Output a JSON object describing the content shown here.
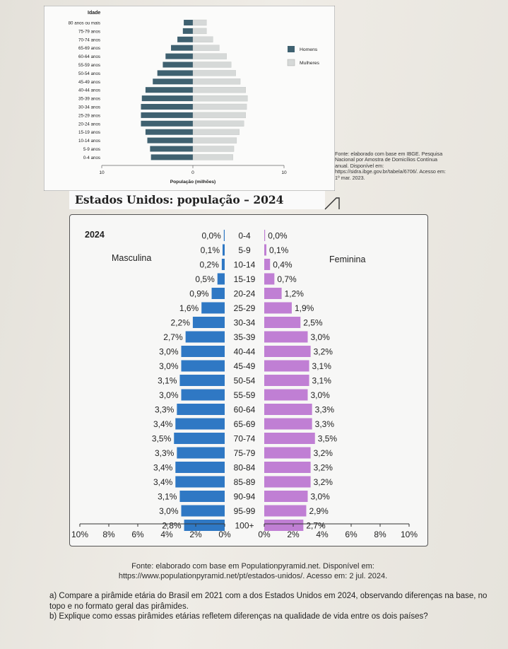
{
  "brazil": {
    "title_axis": "Idade",
    "age_groups": [
      "80 anos ou mais",
      "75-79 anos",
      "70-74 anos",
      "65-69 anos",
      "60-64 anos",
      "55-59 anos",
      "50-54 anos",
      "45-49 anos",
      "40-44 anos",
      "35-39 anos",
      "30-34 anos",
      "25-29 anos",
      "20-24 anos",
      "15-19 anos",
      "10-14 anos",
      "5-9 anos",
      "0-4 anos"
    ],
    "legend": {
      "men": "Homens",
      "women": "Mulheres"
    },
    "xlabel": "População (milhões)",
    "ticks": [
      "10",
      "0",
      "10"
    ],
    "colors": {
      "men": "#3f6170",
      "women": "#d6d9d8"
    },
    "source": "Fonte: elaborado com base em IBGE. Pesquisa Nacional por Amostra de Domicílios Contínua anual. Disponível em: https://sidra.ibge.gov.br/tabela/6706/. Acesso em: 1º mar. 2023."
  },
  "chart_data": [
    {
      "type": "bar",
      "orientation": "horizontal-pyramid",
      "categories": [
        "80 anos ou mais",
        "75-79 anos",
        "70-74 anos",
        "65-69 anos",
        "60-64 anos",
        "55-59 anos",
        "50-54 anos",
        "45-49 anos",
        "40-44 anos",
        "35-39 anos",
        "30-34 anos",
        "25-29 anos",
        "20-24 anos",
        "15-19 anos",
        "10-14 anos",
        "5-9 anos",
        "0-4 anos"
      ],
      "series": [
        {
          "name": "Homens",
          "values": [
            1.0,
            1.1,
            1.7,
            2.4,
            3.0,
            3.3,
            3.9,
            4.4,
            5.2,
            5.6,
            5.7,
            5.7,
            5.7,
            5.2,
            5.0,
            4.7,
            4.6
          ]
        },
        {
          "name": "Mulheres",
          "values": [
            1.5,
            1.5,
            2.2,
            2.9,
            3.7,
            4.2,
            4.7,
            5.2,
            5.8,
            6.0,
            5.9,
            5.8,
            5.6,
            5.1,
            4.8,
            4.5,
            4.4
          ]
        }
      ],
      "xlabel": "População (milhões)",
      "ylabel": "Idade",
      "xlim": [
        -10,
        10
      ]
    },
    {
      "type": "bar",
      "orientation": "horizontal-pyramid",
      "title": "Estados Unidos: população – 2024",
      "year_label": "2024",
      "categories": [
        "0-4",
        "5-9",
        "10-14",
        "15-19",
        "20-24",
        "25-29",
        "30-34",
        "35-39",
        "40-44",
        "45-49",
        "50-54",
        "55-59",
        "60-64",
        "65-69",
        "70-74",
        "75-79",
        "80-84",
        "85-89",
        "90-94",
        "95-99",
        "100+"
      ],
      "series": [
        {
          "name": "Masculina",
          "values": [
            0.0,
            0.1,
            0.2,
            0.5,
            0.9,
            1.6,
            2.2,
            2.7,
            3.0,
            3.0,
            3.1,
            3.0,
            3.3,
            3.4,
            3.5,
            3.3,
            3.4,
            3.4,
            3.1,
            3.0,
            2.8
          ],
          "labels": [
            "0,0%",
            "0,1%",
            "0,2%",
            "0,5%",
            "0,9%",
            "1,6%",
            "2,2%",
            "2,7%",
            "3,0%",
            "3,0%",
            "3,1%",
            "3,0%",
            "3,3%",
            "3,4%",
            "3,5%",
            "3,3%",
            "3,4%",
            "3,4%",
            "3,1%",
            "3,0%",
            "2,8%"
          ]
        },
        {
          "name": "Feminina",
          "values": [
            0.0,
            0.1,
            0.4,
            0.7,
            1.2,
            1.9,
            2.5,
            3.0,
            3.2,
            3.1,
            3.1,
            3.0,
            3.3,
            3.3,
            3.5,
            3.2,
            3.2,
            3.2,
            3.0,
            2.9,
            2.7
          ],
          "labels": [
            "0,0%",
            "0,1%",
            "0,4%",
            "0,7%",
            "1,2%",
            "1,9%",
            "2,5%",
            "3,0%",
            "3,2%",
            "3,1%",
            "3,1%",
            "3,0%",
            "3,3%",
            "3,3%",
            "3,5%",
            "3,2%",
            "3,2%",
            "3,2%",
            "3,0%",
            "2,9%",
            "2,7%"
          ]
        }
      ],
      "ticks_left": [
        "10%",
        "8%",
        "6%",
        "4%",
        "2%",
        "0%"
      ],
      "ticks_right": [
        "0%",
        "2%",
        "4%",
        "6%",
        "8%",
        "10%"
      ],
      "xlim": [
        -10,
        10
      ],
      "colors": {
        "male": "#2f78c4",
        "female": "#c07fd4"
      }
    }
  ],
  "us": {
    "title": "Estados Unidos: população – 2024",
    "source": "Fonte: elaborado com base em Populationpyramid.net. Disponível em: https://www.populationpyramid.net/pt/estados-unidos/. Acesso em: 2 jul. 2024."
  },
  "questions": {
    "a": "a) Compare a pirâmide etária do Brasil em 2021 com a dos Estados Unidos em 2024, observando diferenças na base, no topo e no formato geral das pirâmides.",
    "b": "b) Explique como essas pirâmides etárias refletem diferenças na qualidade de vida entre os dois países?"
  }
}
